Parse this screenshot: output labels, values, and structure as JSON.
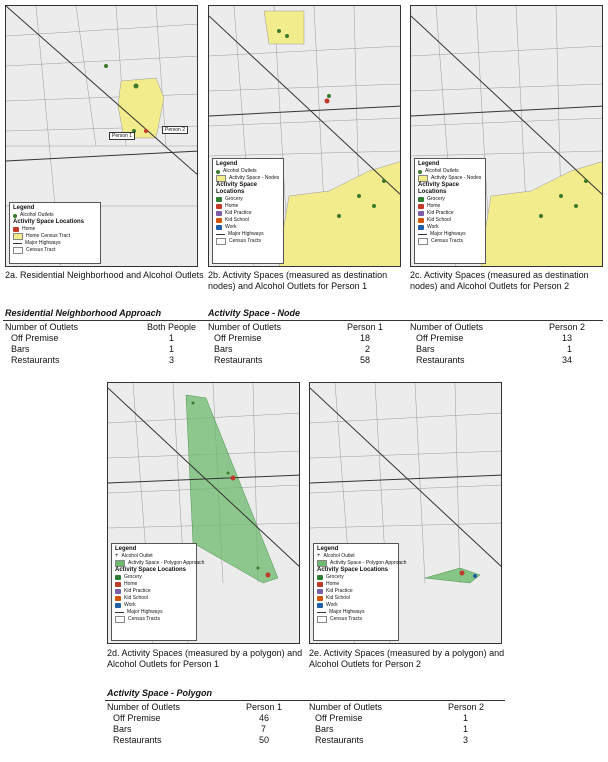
{
  "maps": {
    "a": {
      "caption": "2a. Residential Neighborhood and Alcohol Outlets",
      "legend": {
        "title": "Legend",
        "outlets": "Alcohol Outlets",
        "section": "Activity Space Locations",
        "items": [
          "Home",
          "Home Census Tract",
          "Major Highways",
          "Census Tract"
        ]
      },
      "markers": [
        "Person 1",
        "Person 2"
      ]
    },
    "b": {
      "caption_1": "2b. Activity Spaces (measured as destination",
      "caption_2": "nodes) and Alcohol Outlets for Person 1",
      "legend": {
        "title": "Legend",
        "outlets": "Alcohol Outlets",
        "space": "Activity Space - Nodes",
        "section": "Activity Space Locations",
        "items": [
          "Grocery",
          "Home",
          "Kid Practice",
          "Kid School",
          "Work",
          "Major Highways",
          "Census Tracts"
        ]
      }
    },
    "c": {
      "caption_1": "2c. Activity Spaces (measured as destination",
      "caption_2": "nodes) and Alcohol Outlets for Person 2",
      "legend": {
        "title": "Legend",
        "outlets": "Alcohol Outlets",
        "space": "Activity Space - Nodes",
        "section": "Activity Space Locations",
        "items": [
          "Grocery",
          "Home",
          "Kid Practice",
          "Kid School",
          "Work",
          "Major Highways",
          "Census Tracts"
        ]
      }
    },
    "d": {
      "caption_1": "2d. Activity Spaces (measured by a polygon) and",
      "caption_2": "Alcohol Outlets for Person 1",
      "legend": {
        "title": "Legend",
        "outlets": "Alcohol Outlet",
        "space": "Activity Space - Polygon Approach",
        "section": "Activity Space Locations",
        "items": [
          "Grocery",
          "Home",
          "Kid Practice",
          "Kid School",
          "Work",
          "Major Highways",
          "Census Tracts"
        ]
      }
    },
    "e": {
      "caption_1": "2e. Activity Spaces (measured by a polygon) and",
      "caption_2": "Alcohol Outlets for Person 2",
      "legend": {
        "title": "Legend",
        "outlets": "Alcohol Outlet",
        "space": "Activity Space - Polygon Approach",
        "section": "Activity Space Locations",
        "items": [
          "Grocery",
          "Home",
          "Kid Practice",
          "Kid School",
          "Work",
          "Major Highways",
          "Census Tracts"
        ]
      }
    }
  },
  "colors": {
    "yellow": "#f3ec8c",
    "green": "#6dbb6d",
    "outlet": "#3a7a2a"
  },
  "tables": {
    "residential": {
      "title": "Residential Neighborhood Approach",
      "header": [
        "Number of Outlets",
        "Both People"
      ],
      "rows": [
        [
          "Off Premise",
          "1"
        ],
        [
          "Bars",
          "1"
        ],
        [
          "Restaurants",
          "3"
        ]
      ]
    },
    "node": {
      "title": "Activity Space - Node",
      "p1": {
        "header": [
          "Number of Outlets",
          "Person 1"
        ],
        "rows": [
          [
            "Off Premise",
            "18"
          ],
          [
            "Bars",
            "2"
          ],
          [
            "Restaurants",
            "58"
          ]
        ]
      },
      "p2": {
        "header": [
          "Number of Outlets",
          "Person 2"
        ],
        "rows": [
          [
            "Off Premise",
            "13"
          ],
          [
            "Bars",
            "1"
          ],
          [
            "Restaurants",
            "34"
          ]
        ]
      }
    },
    "polygon": {
      "title": "Activity Space - Polygon",
      "p1": {
        "header": [
          "Number of Outlets",
          "Person 1"
        ],
        "rows": [
          [
            "Off Premise",
            "46"
          ],
          [
            "Bars",
            "7"
          ],
          [
            "Restaurants",
            "50"
          ]
        ]
      },
      "p2": {
        "header": [
          "Number of Outlets",
          "Person 2"
        ],
        "rows": [
          [
            "Off Premise",
            "1"
          ],
          [
            "Bars",
            "1"
          ],
          [
            "Restaurants",
            "3"
          ]
        ]
      }
    }
  }
}
